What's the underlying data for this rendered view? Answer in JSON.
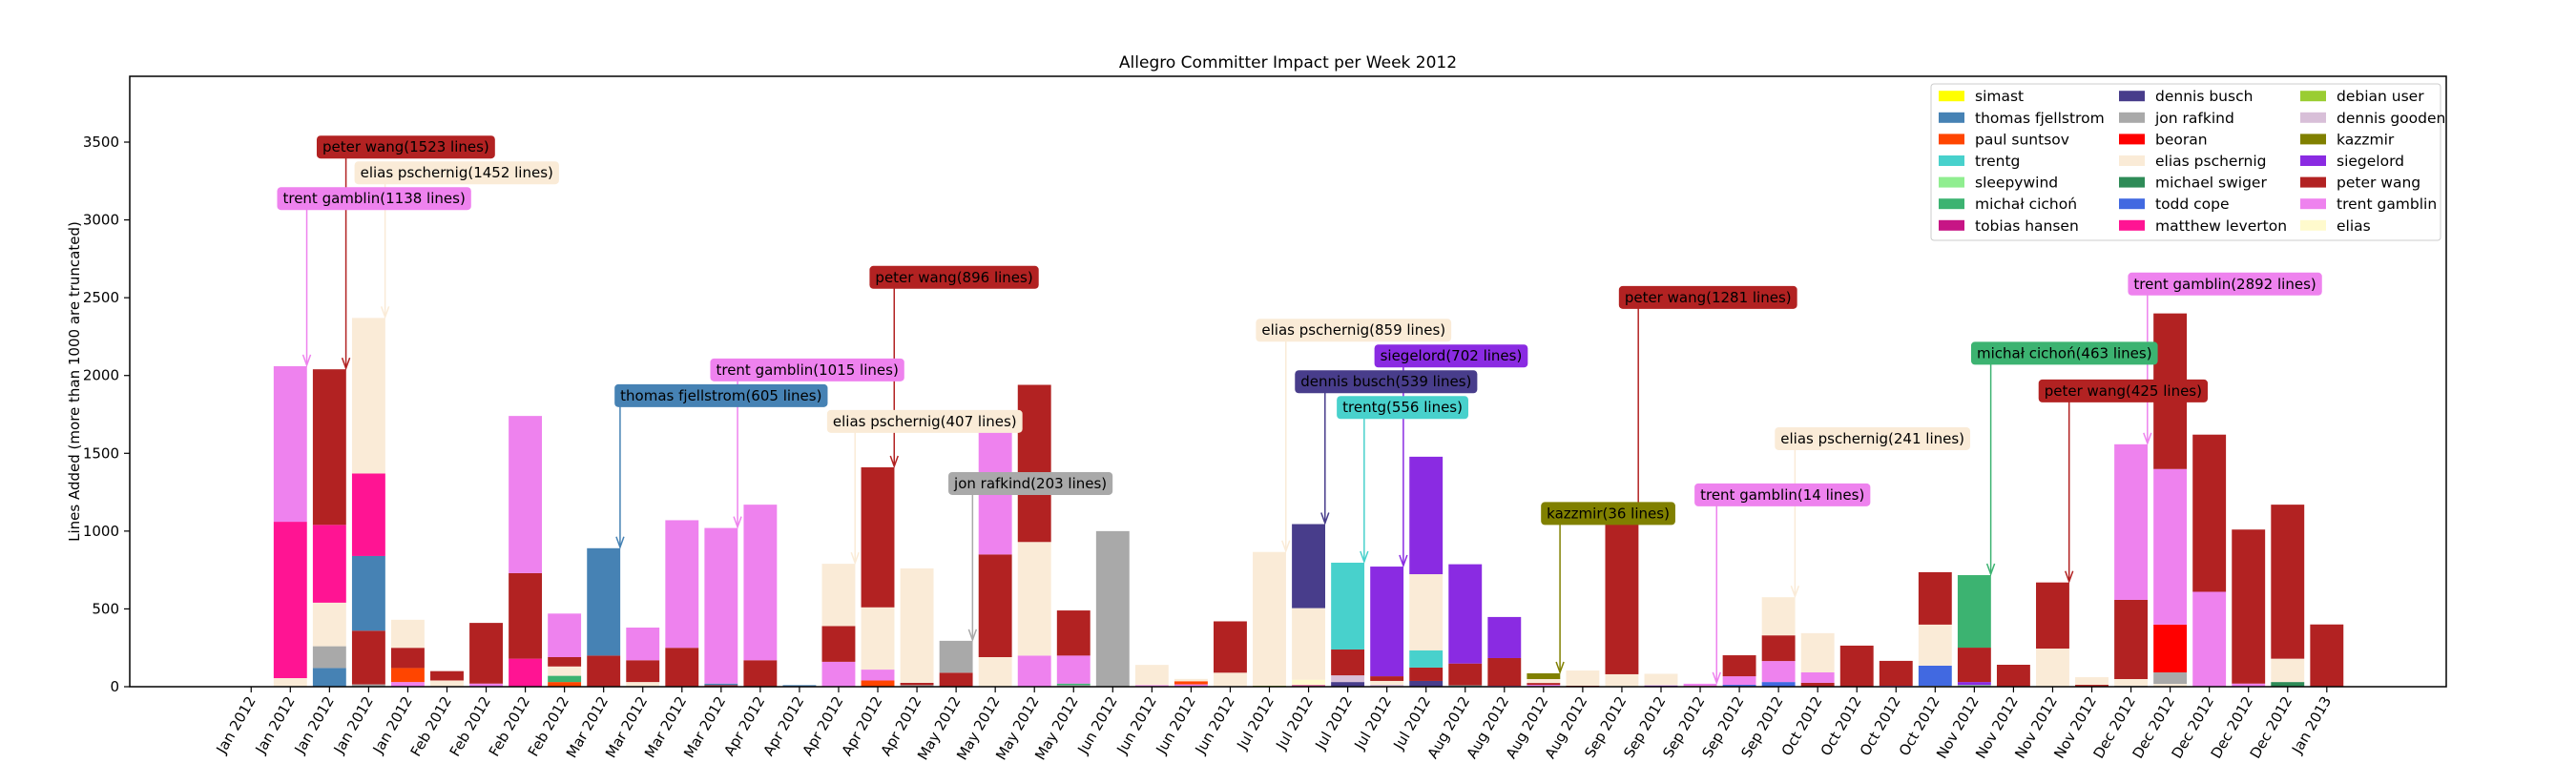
{
  "chart_data": {
    "type": "bar",
    "stacked": true,
    "title": "Allegro Committer Impact per Week 2012",
    "xlabel": "",
    "ylabel": "Lines Added (more than 1000 are truncated)",
    "ylim": [
      0,
      3923
    ],
    "xlim": [
      -3.1,
      56.05
    ],
    "yticks": [
      "0",
      "500",
      "1000",
      "1500",
      "2000",
      "2500",
      "3000",
      "3500"
    ],
    "ytick_values": [
      0,
      500,
      1000,
      1500,
      2000,
      2500,
      3000,
      3500
    ],
    "grid": false,
    "legend_position": "top-right",
    "colors": {
      "simast": "#ffff00",
      "thomas fjellstrom": "#4682b4",
      "paul suntsov": "#ff4500",
      "trentg": "#48d1cc",
      "sleepywind": "#90ee90",
      "michał cichoń": "#3cb371",
      "tobias hansen": "#c71585",
      "dennis busch": "#483d8b",
      "jon rafkind": "#a9a9a9",
      "beoran": "#ff0000",
      "elias pschernig": "#faebd7",
      "michael swiger": "#2e8b57",
      "todd cope": "#4169e1",
      "matthew leverton": "#ff1493",
      "debian user": "#9acd32",
      "dennis gooden": "#d8bfd8",
      "kazzmir": "#808000",
      "siegelord": "#8a2be2",
      "peter wang": "#b22222",
      "trent gamblin": "#ee82ee",
      "elias": "#fffacd"
    },
    "legend": [
      "simast",
      "thomas fjellstrom",
      "paul suntsov",
      "trentg",
      "sleepywind",
      "michał cichoń",
      "tobias hansen",
      "dennis busch",
      "jon rafkind",
      "beoran",
      "elias pschernig",
      "michael swiger",
      "todd cope",
      "matthew leverton",
      "debian user",
      "dennis gooden",
      "kazzmir",
      "siegelord",
      "peter wang",
      "trent gamblin",
      "elias"
    ],
    "categories": [
      "Jan 2012",
      "Jan 2012",
      "Jan 2012",
      "Jan 2012",
      "Jan 2012",
      "Feb 2012",
      "Feb 2012",
      "Feb 2012",
      "Feb 2012",
      "Mar 2012",
      "Mar 2012",
      "Mar 2012",
      "Mar 2012",
      "Apr 2012",
      "Apr 2012",
      "Apr 2012",
      "Apr 2012",
      "Apr 2012",
      "May 2012",
      "May 2012",
      "May 2012",
      "May 2012",
      "Jun 2012",
      "Jun 2012",
      "Jun 2012",
      "Jun 2012",
      "Jul 2012",
      "Jul 2012",
      "Jul 2012",
      "Jul 2012",
      "Jul 2012",
      "Aug 2012",
      "Aug 2012",
      "Aug 2012",
      "Aug 2012",
      "Sep 2012",
      "Sep 2012",
      "Sep 2012",
      "Sep 2012",
      "Sep 2012",
      "Oct 2012",
      "Oct 2012",
      "Oct 2012",
      "Oct 2012",
      "Nov 2012",
      "Nov 2012",
      "Nov 2012",
      "Nov 2012",
      "Dec 2012",
      "Dec 2012",
      "Dec 2012",
      "Dec 2012",
      "Dec 2012",
      "Jan 2013"
    ],
    "stacks": [
      [],
      [
        [
          "elias pschernig",
          55
        ],
        [
          "matthew leverton",
          1005
        ],
        [
          "trent gamblin",
          1000
        ]
      ],
      [
        [
          "thomas fjellstrom",
          120
        ],
        [
          "jon rafkind",
          140
        ],
        [
          "elias pschernig",
          280
        ],
        [
          "matthew leverton",
          500
        ],
        [
          "peter wang",
          1000
        ]
      ],
      [
        [
          "jon rafkind",
          15
        ],
        [
          "peter wang",
          345
        ],
        [
          "thomas fjellstrom",
          480
        ],
        [
          "matthew leverton",
          530
        ],
        [
          "elias pschernig",
          1000
        ]
      ],
      [
        [
          "trent gamblin",
          30
        ],
        [
          "paul suntsov",
          90
        ],
        [
          "peter wang",
          130
        ],
        [
          "elias pschernig",
          180
        ]
      ],
      [
        [
          "elias pschernig",
          40
        ],
        [
          "peter wang",
          60
        ]
      ],
      [
        [
          "trent gamblin",
          20
        ],
        [
          "peter wang",
          390
        ]
      ],
      [
        [
          "matthew leverton",
          180
        ],
        [
          "peter wang",
          550
        ],
        [
          "trent gamblin",
          1010
        ]
      ],
      [
        [
          "paul suntsov",
          30
        ],
        [
          "michał cichoń",
          40
        ],
        [
          "elias pschernig",
          60
        ],
        [
          "peter wang",
          60
        ],
        [
          "trent gamblin",
          280
        ]
      ],
      [
        [
          "peter wang",
          200
        ],
        [
          "thomas fjellstrom",
          690
        ]
      ],
      [
        [
          "elias pschernig",
          30
        ],
        [
          "peter wang",
          140
        ],
        [
          "trent gamblin",
          210
        ]
      ],
      [
        [
          "peter wang",
          250
        ],
        [
          "trent gamblin",
          820
        ]
      ],
      [
        [
          "peter wang",
          10
        ],
        [
          "thomas fjellstrom",
          10
        ],
        [
          "trent gamblin",
          1000
        ]
      ],
      [
        [
          "peter wang",
          170
        ],
        [
          "trent gamblin",
          1000
        ]
      ],
      [
        [
          "thomas fjellstrom",
          10
        ]
      ],
      [
        [
          "trent gamblin",
          160
        ],
        [
          "peter wang",
          230
        ],
        [
          "elias pschernig",
          400
        ]
      ],
      [
        [
          "paul suntsov",
          40
        ],
        [
          "trent gamblin",
          70
        ],
        [
          "elias pschernig",
          400
        ],
        [
          "peter wang",
          900
        ]
      ],
      [
        [
          "jon rafkind",
          10
        ],
        [
          "peter wang",
          15
        ],
        [
          "elias pschernig",
          735
        ]
      ],
      [
        [
          "peter wang",
          90
        ],
        [
          "jon rafkind",
          205
        ]
      ],
      [
        [
          "elias pschernig",
          190
        ],
        [
          "peter wang",
          660
        ],
        [
          "trent gamblin",
          900
        ]
      ],
      [
        [
          "trent gamblin",
          200
        ],
        [
          "elias pschernig",
          730
        ],
        [
          "peter wang",
          1010
        ]
      ],
      [
        [
          "jon rafkind",
          10
        ],
        [
          "michał cichoń",
          10
        ],
        [
          "trent gamblin",
          180
        ],
        [
          "peter wang",
          290
        ]
      ],
      [
        [
          "jon rafkind",
          1000
        ]
      ],
      [
        [
          "trent gamblin",
          10
        ],
        [
          "elias pschernig",
          130
        ]
      ],
      [
        [
          "trent gamblin",
          15
        ],
        [
          "paul suntsov",
          20
        ],
        [
          "elias pschernig",
          15
        ]
      ],
      [
        [
          "elias pschernig",
          90
        ],
        [
          "peter wang",
          330
        ]
      ],
      [
        [
          "debian user",
          6
        ],
        [
          "elias pschernig",
          860
        ]
      ],
      [
        [
          "peter wang",
          5
        ],
        [
          "tobias hansen",
          5
        ],
        [
          "elias",
          35
        ],
        [
          "elias pschernig",
          460
        ],
        [
          "dennis busch",
          540
        ]
      ],
      [
        [
          "dennis busch",
          30
        ],
        [
          "dennis gooden",
          43
        ],
        [
          "peter wang",
          166
        ],
        [
          "trentg",
          558
        ]
      ],
      [
        [
          "dennis gooden",
          12
        ],
        [
          "elias pschernig",
          25
        ],
        [
          "peter wang",
          30
        ],
        [
          "siegelord",
          705
        ]
      ],
      [
        [
          "dennis busch",
          37
        ],
        [
          "peter wang",
          86
        ],
        [
          "trentg",
          110
        ],
        [
          "elias pschernig",
          490
        ],
        [
          "siegelord",
          755
        ]
      ],
      [
        [
          "trentg",
          8
        ],
        [
          "peter wang",
          141
        ],
        [
          "siegelord",
          638
        ]
      ],
      [
        [
          "trent gamblin",
          6
        ],
        [
          "peter wang",
          178
        ],
        [
          "siegelord",
          264
        ]
      ],
      [
        [
          "trent gamblin",
          12
        ],
        [
          "peter wang",
          12
        ],
        [
          "elias pschernig",
          25
        ],
        [
          "kazzmir",
          37
        ]
      ],
      [
        [
          "peter wang",
          6
        ],
        [
          "elias pschernig",
          98
        ]
      ],
      [
        [
          "elias pschernig",
          80
        ],
        [
          "peter wang",
          1000
        ]
      ],
      [
        [
          "siegelord",
          8
        ],
        [
          "elias pschernig",
          75
        ]
      ],
      [
        [
          "peter wang",
          5
        ],
        [
          "trent gamblin",
          14
        ]
      ],
      [
        [
          "todd cope",
          12
        ],
        [
          "trent gamblin",
          55
        ],
        [
          "peter wang",
          135
        ]
      ],
      [
        [
          "todd cope",
          30
        ],
        [
          "trent gamblin",
          135
        ],
        [
          "peter wang",
          165
        ],
        [
          "elias pschernig",
          245
        ]
      ],
      [
        [
          "peter wang",
          25
        ],
        [
          "trent gamblin",
          67
        ],
        [
          "elias pschernig",
          252
        ]
      ],
      [
        [
          "peter wang",
          264
        ]
      ],
      [
        [
          "trent gamblin",
          6
        ],
        [
          "peter wang",
          160
        ]
      ],
      [
        [
          "jon rafkind",
          6
        ],
        [
          "todd cope",
          129
        ],
        [
          "elias pschernig",
          264
        ],
        [
          "peter wang",
          337
        ]
      ],
      [
        [
          "sleepywind",
          10
        ],
        [
          "siegelord",
          20
        ],
        [
          "peter wang",
          221
        ],
        [
          "michał cichoń",
          466
        ]
      ],
      [
        [
          "peter wang",
          141
        ]
      ],
      [
        [
          "elias pschernig",
          245
        ],
        [
          "peter wang",
          425
        ]
      ],
      [
        [
          "peter wang",
          12
        ],
        [
          "elias pschernig",
          49
        ]
      ],
      [
        [
          "jon rafkind",
          6
        ],
        [
          "elias pschernig",
          43
        ],
        [
          "peter wang",
          509
        ],
        [
          "trent gamblin",
          1000
        ]
      ],
      [
        [
          "elias pschernig",
          18
        ],
        [
          "jon rafkind",
          74
        ],
        [
          "beoran",
          307
        ],
        [
          "trent gamblin",
          1000
        ],
        [
          "peter wang",
          1000
        ]
      ],
      [
        [
          "trent gamblin",
          610
        ],
        [
          "peter wang",
          1010
        ]
      ],
      [
        [
          "trent gamblin",
          20
        ],
        [
          "peter wang",
          990
        ]
      ],
      [
        [
          "michael swiger",
          30
        ],
        [
          "elias pschernig",
          150
        ],
        [
          "peter wang",
          990
        ]
      ],
      [
        [
          "peter wang",
          400
        ]
      ]
    ],
    "annotations": [
      {
        "text": "trent gamblin(1138 lines)",
        "author": "trent gamblin",
        "week": 1,
        "label_x": 3.14,
        "label_y": 3287
      },
      {
        "text": "peter wang(1523 lines)",
        "author": "peter wang",
        "week": 2,
        "label_x": 3.95,
        "label_y": 3468
      },
      {
        "text": "elias pschernig(1452 lines)",
        "author": "elias pschernig",
        "week": 3,
        "label_x": 5.25,
        "label_y": 3388
      },
      {
        "text": "thomas fjellstrom(605 lines)",
        "author": "thomas fjellstrom",
        "week": 9,
        "label_x": 12.0,
        "label_y": 1920
      },
      {
        "text": "trent gamblin(1015 lines)",
        "author": "trent gamblin",
        "week": 12,
        "label_x": 14.2,
        "label_y": 2036
      },
      {
        "text": "elias pschernig(407 lines)",
        "author": "elias pschernig",
        "week": 15,
        "label_x": 17.2,
        "label_y": 1815
      },
      {
        "text": "peter wang(896 lines)",
        "author": "peter wang",
        "week": 16,
        "label_x": 17.95,
        "label_y": 2631
      },
      {
        "text": "jon rafkind(203 lines)",
        "author": "jon rafkind",
        "week": 18,
        "label_x": 19.9,
        "label_y": 1306
      },
      {
        "text": "elias pschernig(859 lines)",
        "author": "elias pschernig",
        "week": 26,
        "label_x": 28.15,
        "label_y": 2291
      },
      {
        "text": "dennis busch(539 lines)",
        "author": "dennis busch",
        "week": 27,
        "label_x": 28.98,
        "label_y": 2082
      },
      {
        "text": "siegelord(702 lines)",
        "author": "siegelord",
        "week": 29,
        "label_x": 30.64,
        "label_y": 2199
      },
      {
        "text": "trentg(556 lines)",
        "author": "trentg",
        "week": 28,
        "label_x": 29.4,
        "label_y": 2018
      },
      {
        "text": "kazzmir(36 lines)",
        "author": "kazzmir",
        "week": 33,
        "label_x": 34.65,
        "label_y": 1113
      },
      {
        "text": "peter wang(1281 lines)",
        "author": "peter wang",
        "week": 35,
        "label_x": 37.2,
        "label_y": 2502
      },
      {
        "text": "trent gamblin(14 lines)",
        "author": "trent gamblin",
        "week": 37,
        "label_x": 39.1,
        "label_y": 1233
      },
      {
        "text": "elias pschernig(241 lines)",
        "author": "elias pschernig",
        "week": 39,
        "label_x": 41.4,
        "label_y": 1594
      },
      {
        "text": "michał cichoń(463 lines)",
        "author": "michał cichoń",
        "week": 44,
        "label_x": 46.3,
        "label_y": 2143
      },
      {
        "text": "peter wang(425 lines)",
        "author": "peter wang",
        "week": 46,
        "label_x": 47.8,
        "label_y": 1901
      },
      {
        "text": "trent gamblin(2892 lines)",
        "author": "trent gamblin",
        "week": 48,
        "label_x": 50.4,
        "label_y": 2588
      }
    ]
  }
}
